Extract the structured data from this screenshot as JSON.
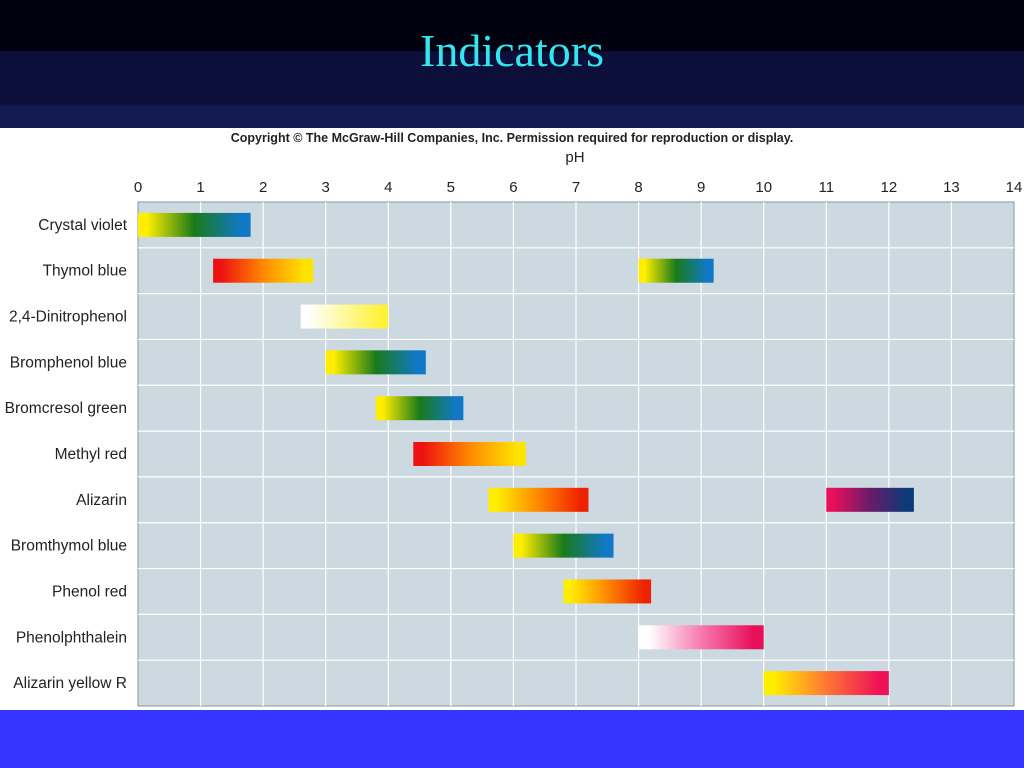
{
  "slide": {
    "title": "Indicators"
  },
  "chart_data": {
    "type": "bar",
    "copyright": "Copyright © The McGraw-Hill Companies, Inc. Permission required for reproduction or display.",
    "xlabel": "pH",
    "ylabel": "",
    "xlim": [
      0,
      14
    ],
    "xticks": [
      "0",
      "1",
      "2",
      "3",
      "4",
      "5",
      "6",
      "7",
      "8",
      "9",
      "10",
      "11",
      "12",
      "13",
      "14"
    ],
    "grid": true,
    "categories": [
      "Crystal violet",
      "Thymol blue",
      "2,4-Dinitrophenol",
      "Bromphenol blue",
      "Bromcresol green",
      "Methyl red",
      "Alizarin",
      "Bromthymol blue",
      "Phenol red",
      "Phenolphthalein",
      "Alizarin yellow R"
    ],
    "ranges": [
      {
        "indicator": "Crystal violet",
        "start": 0.0,
        "end": 1.8,
        "colors": [
          "#ffee00",
          "#1a7a1a",
          "#1178c8"
        ]
      },
      {
        "indicator": "Thymol blue",
        "start": 1.2,
        "end": 2.8,
        "colors": [
          "#ee1111",
          "#ff8800",
          "#ffe400"
        ]
      },
      {
        "indicator": "Thymol blue",
        "start": 8.0,
        "end": 9.2,
        "colors": [
          "#ffee00",
          "#1a7a1a",
          "#1178c8"
        ]
      },
      {
        "indicator": "2,4-Dinitrophenol",
        "start": 2.6,
        "end": 4.0,
        "colors": [
          "#ffffff",
          "#fff23a"
        ]
      },
      {
        "indicator": "Bromphenol blue",
        "start": 3.0,
        "end": 4.6,
        "colors": [
          "#ffee00",
          "#1a7a1a",
          "#1178c8"
        ]
      },
      {
        "indicator": "Bromcresol green",
        "start": 3.8,
        "end": 5.2,
        "colors": [
          "#ffee00",
          "#1a7a1a",
          "#1178c8"
        ]
      },
      {
        "indicator": "Methyl red",
        "start": 4.4,
        "end": 6.2,
        "colors": [
          "#ee1111",
          "#ff8800",
          "#ffe400"
        ]
      },
      {
        "indicator": "Alizarin",
        "start": 5.6,
        "end": 7.2,
        "colors": [
          "#ffee00",
          "#ff8800",
          "#ee2200"
        ]
      },
      {
        "indicator": "Alizarin",
        "start": 11.0,
        "end": 12.4,
        "colors": [
          "#e8105a",
          "#6a1a6a",
          "#0a3a78"
        ]
      },
      {
        "indicator": "Bromthymol blue",
        "start": 6.0,
        "end": 7.6,
        "colors": [
          "#ffee00",
          "#1a7a1a",
          "#1178c8"
        ]
      },
      {
        "indicator": "Phenol red",
        "start": 6.8,
        "end": 8.2,
        "colors": [
          "#ffee00",
          "#ff8800",
          "#ee2200"
        ]
      },
      {
        "indicator": "Phenolphthalein",
        "start": 8.0,
        "end": 10.0,
        "colors": [
          "#ffffff",
          "#f77ab0",
          "#e8105a"
        ]
      },
      {
        "indicator": "Alizarin yellow R",
        "start": 10.0,
        "end": 12.0,
        "colors": [
          "#ffee00",
          "#ff7733",
          "#ee1155"
        ]
      }
    ],
    "plot_bg": "#cdd9e1",
    "grid_color": "#ffffff"
  },
  "theme": {
    "title_color": "#33e6f0",
    "bottom_band": "#3535ff"
  }
}
